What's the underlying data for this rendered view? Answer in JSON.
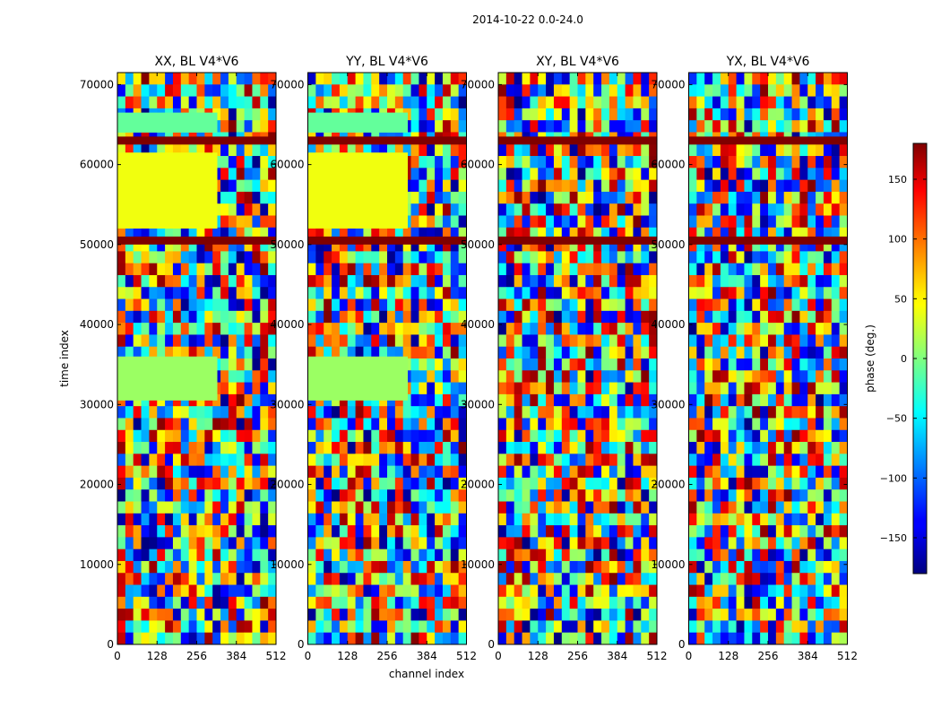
{
  "figure": {
    "suptitle": "2014-10-22 0.0-24.0",
    "xlabel": "channel index",
    "ylabel": "time index"
  },
  "colorbar": {
    "label": "phase (deg.)",
    "range": [
      -180,
      180
    ],
    "ticks": [
      -150,
      -100,
      -50,
      0,
      50,
      100,
      150
    ],
    "tick_labels": [
      "−150",
      "−100",
      "−50",
      "0",
      "50",
      "100",
      "150"
    ],
    "colormap": [
      "#00007f",
      "#0000ff",
      "#007fff",
      "#00ffff",
      "#7fff7f",
      "#ffff00",
      "#ff7f00",
      "#ff0000",
      "#7f0000"
    ]
  },
  "chart_data": [
    {
      "type": "heatmap",
      "title": "XX, BL V4*V6",
      "xlim": [
        0,
        512
      ],
      "ylim": [
        0,
        71500
      ],
      "xticks": [
        0,
        128,
        256,
        384,
        512
      ],
      "yticks": [
        0,
        10000,
        20000,
        30000,
        40000,
        50000,
        60000,
        70000
      ],
      "value": "phase (deg.)",
      "bands": [
        {
          "from": 50000,
          "to": 51000,
          "phase": 180
        },
        {
          "from": 62500,
          "to": 63500,
          "phase": 180
        },
        {
          "from": 52000,
          "to": 61500,
          "phase": 40
        },
        {
          "from": 30500,
          "to": 36000,
          "phase": 10
        },
        {
          "from": 64000,
          "to": 66500,
          "phase": -10
        }
      ]
    },
    {
      "type": "heatmap",
      "title": "YY, BL V4*V6",
      "xlim": [
        0,
        512
      ],
      "ylim": [
        0,
        71500
      ],
      "xticks": [
        0,
        128,
        256,
        384,
        512
      ],
      "yticks": [
        0,
        10000,
        20000,
        30000,
        40000,
        50000,
        60000,
        70000
      ],
      "value": "phase (deg.)",
      "bands": [
        {
          "from": 50000,
          "to": 51000,
          "phase": 180
        },
        {
          "from": 62500,
          "to": 63500,
          "phase": 180
        },
        {
          "from": 52000,
          "to": 61500,
          "phase": 40
        },
        {
          "from": 30500,
          "to": 36000,
          "phase": 10
        },
        {
          "from": 64000,
          "to": 66500,
          "phase": -10
        }
      ]
    },
    {
      "type": "heatmap",
      "title": "XY, BL V4*V6",
      "xlim": [
        0,
        512
      ],
      "ylim": [
        0,
        71500
      ],
      "xticks": [
        0,
        128,
        256,
        384,
        512
      ],
      "yticks": [
        0,
        10000,
        20000,
        30000,
        40000,
        50000,
        60000,
        70000
      ],
      "value": "phase (deg.)",
      "bands": [
        {
          "from": 50000,
          "to": 51000,
          "phase": 180
        },
        {
          "from": 62500,
          "to": 63500,
          "phase": 180
        }
      ]
    },
    {
      "type": "heatmap",
      "title": "YX, BL V4*V6",
      "xlim": [
        0,
        512
      ],
      "ylim": [
        0,
        71500
      ],
      "xticks": [
        0,
        128,
        256,
        384,
        512
      ],
      "yticks": [
        0,
        10000,
        20000,
        30000,
        40000,
        50000,
        60000,
        70000
      ],
      "value": "phase (deg.)",
      "bands": [
        {
          "from": 50000,
          "to": 51000,
          "phase": 180
        },
        {
          "from": 62500,
          "to": 63500,
          "phase": 180
        }
      ]
    }
  ]
}
